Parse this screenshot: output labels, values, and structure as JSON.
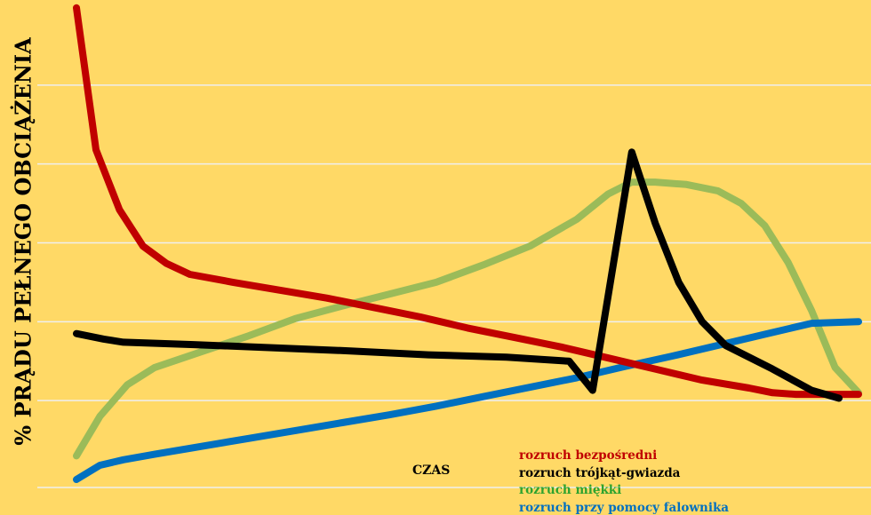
{
  "chart_data": {
    "type": "line",
    "ylabel": "% PRĄDU PEŁNEGO OBCIĄŻENIA",
    "xlabel": "CZAS",
    "grid": true,
    "legend_position": "bottom-right",
    "y_gridlines": [
      100,
      200,
      300,
      400,
      500
    ],
    "ylim": [
      0,
      600
    ],
    "xlim": [
      0,
      100
    ],
    "series": [
      {
        "name": "rozruch bezpośredni",
        "color": "#C00000",
        "x": [
          0,
          2.5,
          5.5,
          8.5,
          11.5,
          14.5,
          20,
          26,
          32,
          38,
          44,
          50,
          56,
          62,
          68,
          74,
          80,
          86,
          89,
          92,
          95,
          100
        ],
        "y": [
          598,
          418,
          342,
          296,
          274,
          260,
          250,
          240,
          230,
          218,
          206,
          192,
          180,
          168,
          154,
          140,
          126,
          116,
          110,
          108,
          108,
          108
        ]
      },
      {
        "name": "rozruch trójkąt-gwiazda",
        "color": "#000000",
        "x": [
          0,
          3.5,
          6,
          15,
          25,
          35,
          45,
          55,
          63,
          66,
          71,
          74,
          77,
          80,
          83,
          89,
          94,
          97.5
        ],
        "y": [
          185,
          178,
          174,
          171,
          167,
          163,
          158,
          155,
          150,
          113,
          415,
          325,
          250,
          200,
          170,
          140,
          113,
          103
        ]
      },
      {
        "name": "rozruch miękki",
        "color": "#9BBB59",
        "x": [
          0,
          3,
          6.5,
          10,
          16,
          22,
          28,
          34,
          40,
          46,
          52,
          58,
          64,
          68,
          71,
          74,
          78,
          82,
          85,
          88,
          91,
          94,
          97,
          100
        ],
        "y": [
          30,
          80,
          120,
          142,
          162,
          182,
          204,
          220,
          235,
          250,
          272,
          296,
          330,
          362,
          377,
          377,
          374,
          366,
          350,
          322,
          275,
          214,
          142,
          110
        ]
      },
      {
        "name": "rozruch przy pomocy falownika",
        "color": "#0070C0",
        "x": [
          0,
          3,
          6,
          10,
          16,
          22,
          28,
          34,
          40,
          46,
          52,
          58,
          64,
          70,
          76,
          82,
          88,
          94,
          100
        ],
        "y": [
          0,
          18,
          25,
          32,
          42,
          52,
          62,
          72,
          82,
          93,
          105,
          117,
          129,
          143,
          156,
          170,
          184,
          198,
          200
        ]
      }
    ]
  }
}
